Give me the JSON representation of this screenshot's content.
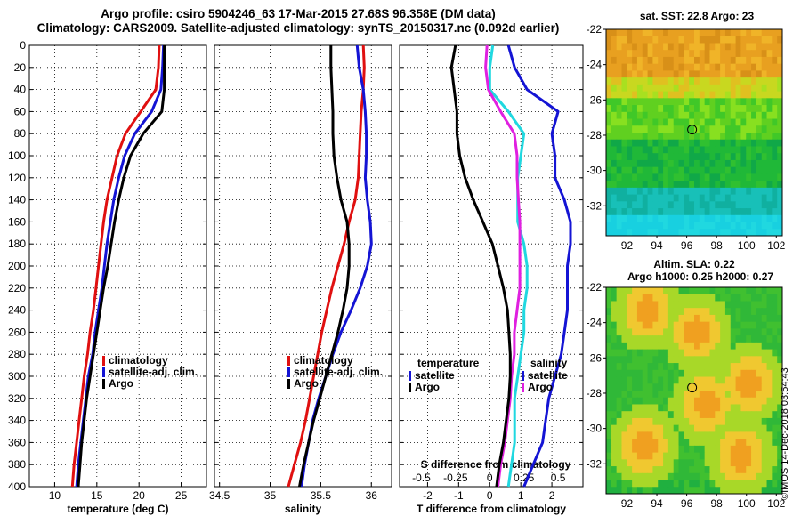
{
  "header": {
    "title_line1": "Argo profile: csiro 5904246_63 17-Mar-2015 27.68S 96.358E (DM data)",
    "title_line2": "Climatology: CARS2009. Satellite-adjusted climatology: synTS_20150317.nc (0.092d earlier)"
  },
  "colors": {
    "climatology": "#e01010",
    "satellite": "#1414d4",
    "argo": "#000000",
    "salinity_diff": "#e020e0",
    "temperature_diff_sat": "#20d8e0"
  },
  "depth_axis": {
    "ticks": [
      "0",
      "20",
      "40",
      "60",
      "80",
      "100",
      "120",
      "140",
      "160",
      "180",
      "200",
      "220",
      "240",
      "260",
      "280",
      "300",
      "320",
      "340",
      "360",
      "380",
      "400"
    ]
  },
  "legend_main": {
    "climatology": "climatology",
    "satellite": "satellite-adj. clim.",
    "argo": "Argo"
  },
  "legend_diff": {
    "temperature_title": "temperature",
    "salinity_title": "salinity",
    "satellite": "satellite",
    "argo": "Argo"
  },
  "side_panels": {
    "sst_title": "sat. SST: 22.8 Argo: 23",
    "sla_title1": "Altim. SLA: 0.22",
    "sla_title2": "Argo h1000: 0.25 h2000: 0.27",
    "lat_ticks": [
      "-22",
      "-24",
      "-26",
      "-28",
      "-30",
      "-32"
    ],
    "lon_ticks": [
      "92",
      "94",
      "96",
      "98",
      "100",
      "102"
    ],
    "argo_lat": -27.68,
    "argo_lon": 96.358
  },
  "footer": {
    "watermark": "©IMOS 14-Dec-2018 03:54:43"
  },
  "chart_data": [
    {
      "type": "line",
      "name": "temperature",
      "xlabel": "temperature (deg C)",
      "ylabel": "depth",
      "xlim": [
        7,
        28
      ],
      "ylim": [
        0,
        400
      ],
      "x_ticks": [
        "10",
        "15",
        "20",
        "25"
      ],
      "depth": [
        0,
        20,
        40,
        60,
        80,
        100,
        120,
        140,
        160,
        180,
        200,
        220,
        240,
        260,
        280,
        300,
        320,
        340,
        360,
        380,
        400
      ],
      "series": [
        {
          "name": "climatology",
          "values": [
            22.4,
            22.3,
            22.0,
            20.2,
            18.4,
            17.4,
            16.8,
            16.2,
            15.8,
            15.5,
            15.2,
            14.9,
            14.6,
            14.2,
            13.9,
            13.5,
            13.2,
            12.9,
            12.6,
            12.3,
            12.1
          ]
        },
        {
          "name": "satellite-adj. clim.",
          "values": [
            22.9,
            22.8,
            22.6,
            21.5,
            19.5,
            18.3,
            17.6,
            17.0,
            16.6,
            16.2,
            15.9,
            15.6,
            15.2,
            14.8,
            14.5,
            14.0,
            13.7,
            13.4,
            13.1,
            12.8,
            12.6
          ]
        },
        {
          "name": "Argo",
          "values": [
            23.0,
            23.0,
            23.0,
            22.7,
            20.5,
            19.0,
            18.2,
            17.6,
            17.1,
            16.7,
            16.3,
            15.8,
            15.4,
            15.0,
            14.6,
            14.2,
            13.8,
            13.5,
            13.2,
            13.0,
            12.8
          ]
        }
      ]
    },
    {
      "type": "line",
      "name": "salinity",
      "xlabel": "salinity",
      "ylabel": "depth",
      "xlim": [
        34.45,
        36.2
      ],
      "ylim": [
        0,
        400
      ],
      "x_ticks": [
        "34.5",
        "35",
        "35.5",
        "36"
      ],
      "depth": [
        0,
        20,
        40,
        60,
        80,
        100,
        120,
        140,
        160,
        180,
        200,
        220,
        240,
        260,
        280,
        300,
        320,
        340,
        360,
        380,
        400
      ],
      "series": [
        {
          "name": "climatology",
          "values": [
            35.92,
            35.93,
            35.92,
            35.9,
            35.89,
            35.88,
            35.87,
            35.84,
            35.78,
            35.73,
            35.67,
            35.61,
            35.56,
            35.51,
            35.47,
            35.43,
            35.39,
            35.35,
            35.3,
            35.24,
            35.18
          ]
        },
        {
          "name": "satellite-adj. clim.",
          "values": [
            35.86,
            35.88,
            35.92,
            35.94,
            35.95,
            35.95,
            35.94,
            35.96,
            35.99,
            36.0,
            35.96,
            35.89,
            35.8,
            35.7,
            35.62,
            35.55,
            35.48,
            35.42,
            35.38,
            35.34,
            35.31
          ]
        },
        {
          "name": "Argo",
          "values": [
            35.6,
            35.6,
            35.61,
            35.62,
            35.62,
            35.63,
            35.66,
            35.7,
            35.76,
            35.78,
            35.78,
            35.76,
            35.72,
            35.67,
            35.61,
            35.55,
            35.49,
            35.43,
            35.38,
            35.33,
            35.29
          ]
        }
      ]
    },
    {
      "type": "line",
      "name": "difference from climatology",
      "xlabel": "T difference from climatology",
      "top_label": "S difference from climatology",
      "ylabel": "depth",
      "xlim": [
        -2.9,
        3.0
      ],
      "ylim": [
        0,
        400
      ],
      "x_ticks": [
        "-2",
        "-1",
        "0",
        "1",
        "2"
      ],
      "top_ticks": [
        "-0.5",
        "-0.25",
        "0",
        "0.25",
        "0.5"
      ],
      "depth": [
        0,
        20,
        40,
        60,
        80,
        100,
        120,
        140,
        160,
        180,
        200,
        220,
        240,
        260,
        280,
        300,
        320,
        340,
        360,
        380,
        400
      ],
      "series": [
        {
          "name": "T satellite",
          "values": [
            0.1,
            0.0,
            0.0,
            0.6,
            1.1,
            1.0,
            0.9,
            0.9,
            0.9,
            1.1,
            1.2,
            1.2,
            1.1,
            1.1,
            1.0,
            0.9,
            0.8,
            0.8,
            0.8,
            0.7,
            0.6
          ]
        },
        {
          "name": "T Argo",
          "values": [
            0.6,
            0.8,
            1.2,
            2.2,
            2.0,
            2.1,
            2.1,
            2.4,
            2.6,
            2.6,
            2.5,
            2.5,
            2.5,
            2.4,
            2.3,
            2.1,
            1.9,
            1.8,
            1.7,
            1.4,
            1.1
          ]
        },
        {
          "name": "S satellite",
          "values": [
            -0.02,
            -0.03,
            -0.01,
            0.08,
            0.18,
            0.2,
            0.2,
            0.21,
            0.22,
            0.22,
            0.22,
            0.22,
            0.2,
            0.18,
            0.18,
            0.16,
            0.15,
            0.13,
            0.11,
            0.08,
            0.06
          ]
        },
        {
          "name": "S Argo",
          "values": [
            -0.25,
            -0.28,
            -0.26,
            -0.24,
            -0.24,
            -0.22,
            -0.18,
            -0.12,
            -0.05,
            0.02,
            0.06,
            0.1,
            0.13,
            0.14,
            0.15,
            0.15,
            0.14,
            0.12,
            0.1,
            0.07,
            0.05
          ]
        }
      ]
    }
  ]
}
